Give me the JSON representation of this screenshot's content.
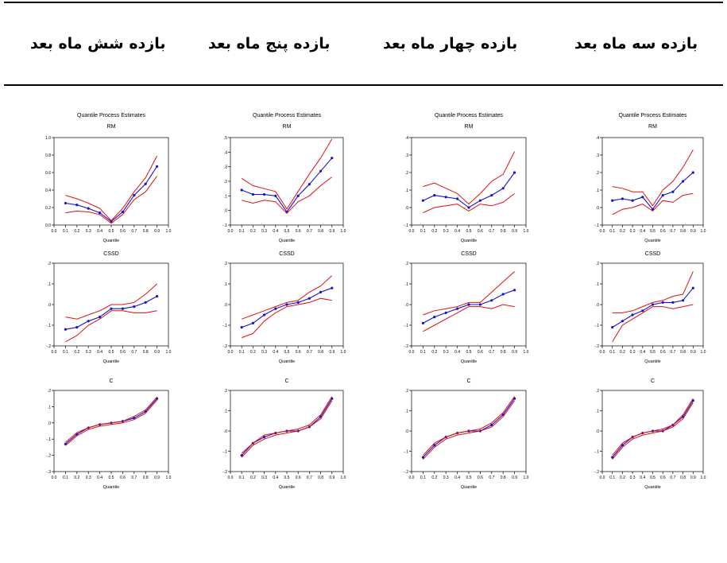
{
  "headers": [
    "بازده سه ماه بعد",
    "بازده چهار ماه بعد",
    "بازده پنج ماه بعد",
    "بازده شش ماه بعد"
  ],
  "colors": {
    "estimate": "#1515c8",
    "band": "#e01010",
    "axis": "#000000"
  },
  "chart_data": [
    {
      "type": "line",
      "title": "Quantile Process Estimates",
      "subtitle": "RM",
      "xlabel": "Quantile",
      "xticks": [
        "0.0",
        "0.1",
        "0.2",
        "0.3",
        "0.4",
        "0.5",
        "0.6",
        "0.7",
        "0.8",
        "0.9",
        "1.0"
      ],
      "yticks": [
        "-.1",
        ".0",
        ".1",
        ".2",
        ".3",
        ".4"
      ],
      "ylim": [
        -0.1,
        0.4
      ],
      "x": [
        0.1,
        0.2,
        0.3,
        0.4,
        0.5,
        0.6,
        0.7,
        0.8,
        0.9
      ],
      "series": [
        {
          "values": [
            0.04,
            0.05,
            0.04,
            0.06,
            -0.01,
            0.07,
            0.09,
            0.15,
            0.2
          ],
          "role": "estimate"
        },
        {
          "values": [
            0.12,
            0.11,
            0.09,
            0.09,
            0.01,
            0.1,
            0.15,
            0.23,
            0.33
          ],
          "role": "upper"
        },
        {
          "values": [
            -0.04,
            -0.01,
            0.0,
            0.02,
            -0.02,
            0.04,
            0.03,
            0.07,
            0.08
          ],
          "role": "lower"
        }
      ]
    },
    {
      "type": "line",
      "title": "Quantile Process Estimates",
      "subtitle": "RM",
      "xlabel": "Quantile",
      "xticks": [
        "0.0",
        "0.1",
        "0.2",
        "0.3",
        "0.4",
        "0.5",
        "0.6",
        "0.7",
        "0.8",
        "0.9",
        "1.0"
      ],
      "yticks": [
        "-.1",
        ".0",
        ".1",
        ".2",
        ".3",
        ".4"
      ],
      "ylim": [
        -0.1,
        0.4
      ],
      "x": [
        0.1,
        0.2,
        0.3,
        0.4,
        0.5,
        0.6,
        0.7,
        0.8,
        0.9
      ],
      "series": [
        {
          "values": [
            0.04,
            0.07,
            0.06,
            0.05,
            0.0,
            0.04,
            0.07,
            0.11,
            0.2
          ],
          "role": "estimate"
        },
        {
          "values": [
            0.12,
            0.14,
            0.11,
            0.08,
            0.02,
            0.08,
            0.15,
            0.19,
            0.32
          ],
          "role": "upper"
        },
        {
          "values": [
            -0.03,
            0.0,
            0.01,
            0.02,
            -0.02,
            0.02,
            0.01,
            0.03,
            0.08
          ],
          "role": "lower"
        }
      ]
    },
    {
      "type": "line",
      "title": "Quantile Process Estimates",
      "subtitle": "RM",
      "xlabel": "Quantile",
      "xticks": [
        "0.0",
        "0.1",
        "0.2",
        "0.3",
        "0.4",
        "0.5",
        "0.6",
        "0.7",
        "0.8",
        "0.9",
        "1.0"
      ],
      "yticks": [
        "-.1",
        ".0",
        ".1",
        ".2",
        ".3",
        ".4",
        ".5"
      ],
      "ylim": [
        -0.1,
        0.5
      ],
      "x": [
        0.1,
        0.2,
        0.3,
        0.4,
        0.5,
        0.6,
        0.7,
        0.8,
        0.9
      ],
      "series": [
        {
          "values": [
            0.14,
            0.11,
            0.11,
            0.1,
            -0.01,
            0.1,
            0.18,
            0.27,
            0.36
          ],
          "role": "estimate"
        },
        {
          "values": [
            0.22,
            0.17,
            0.15,
            0.13,
            0.01,
            0.13,
            0.25,
            0.36,
            0.49
          ],
          "role": "upper"
        },
        {
          "values": [
            0.07,
            0.05,
            0.07,
            0.06,
            -0.02,
            0.06,
            0.1,
            0.17,
            0.23
          ],
          "role": "lower"
        }
      ]
    },
    {
      "type": "line",
      "title": "Quantile Process Estimates",
      "subtitle": "RM",
      "xlabel": "Quantile",
      "xticks": [
        "0.0",
        "0.1",
        "0.2",
        "0.3",
        "0.4",
        "0.5",
        "0.6",
        "0.7",
        "0.8",
        "0.9",
        "1.0"
      ],
      "yticks": [
        "0.0",
        "0.2",
        "0.4",
        "0.6",
        "0.8",
        "1.0"
      ],
      "ylim": [
        0.0,
        1.0
      ],
      "x": [
        0.1,
        0.2,
        0.3,
        0.4,
        0.5,
        0.6,
        0.7,
        0.8,
        0.9
      ],
      "series": [
        {
          "values": [
            0.25,
            0.23,
            0.19,
            0.14,
            0.04,
            0.15,
            0.34,
            0.47,
            0.67
          ],
          "role": "estimate"
        },
        {
          "values": [
            0.34,
            0.3,
            0.25,
            0.19,
            0.05,
            0.19,
            0.38,
            0.54,
            0.79
          ],
          "role": "upper"
        },
        {
          "values": [
            0.14,
            0.16,
            0.15,
            0.12,
            0.02,
            0.12,
            0.29,
            0.38,
            0.56
          ],
          "role": "lower"
        }
      ]
    },
    {
      "type": "line",
      "title": "CSSD",
      "xlabel": "Quantile",
      "xticks": [
        "0.0",
        "0.1",
        "0.2",
        "0.3",
        "0.4",
        "0.5",
        "0.6",
        "0.7",
        "0.8",
        "0.9",
        "1.0"
      ],
      "yticks": [
        "-.2",
        "-.1",
        ".0",
        ".1",
        ".2"
      ],
      "ylim": [
        -0.2,
        0.2
      ],
      "x": [
        0.1,
        0.2,
        0.3,
        0.4,
        0.5,
        0.6,
        0.7,
        0.8,
        0.9
      ],
      "series": [
        {
          "values": [
            -0.11,
            -0.08,
            -0.05,
            -0.03,
            0.0,
            0.01,
            0.01,
            0.02,
            0.08
          ],
          "role": "estimate"
        },
        {
          "values": [
            -0.04,
            -0.04,
            -0.03,
            -0.01,
            0.01,
            0.02,
            0.04,
            0.05,
            0.16
          ],
          "role": "upper"
        },
        {
          "values": [
            -0.18,
            -0.1,
            -0.07,
            -0.04,
            -0.01,
            -0.01,
            -0.02,
            -0.01,
            0.0
          ],
          "role": "lower"
        }
      ]
    },
    {
      "type": "line",
      "title": "CSSD",
      "xlabel": "Quantile",
      "xticks": [
        "0.0",
        "0.1",
        "0.2",
        "0.3",
        "0.4",
        "0.5",
        "0.6",
        "0.7",
        "0.8",
        "0.9",
        "1.0"
      ],
      "yticks": [
        "-.2",
        "-.1",
        ".0",
        ".1",
        ".2"
      ],
      "ylim": [
        -0.2,
        0.2
      ],
      "x": [
        0.1,
        0.2,
        0.3,
        0.4,
        0.5,
        0.6,
        0.7,
        0.8,
        0.9
      ],
      "series": [
        {
          "values": [
            -0.09,
            -0.06,
            -0.04,
            -0.02,
            0.0,
            0.0,
            0.02,
            0.05,
            0.07
          ],
          "role": "estimate"
        },
        {
          "values": [
            -0.05,
            -0.03,
            -0.02,
            -0.01,
            0.01,
            0.01,
            0.06,
            0.11,
            0.16
          ],
          "role": "upper"
        },
        {
          "values": [
            -0.13,
            -0.1,
            -0.07,
            -0.04,
            -0.01,
            -0.01,
            -0.02,
            0.0,
            -0.01
          ],
          "role": "lower"
        }
      ]
    },
    {
      "type": "line",
      "title": "CSSD",
      "xlabel": "Quantile",
      "xticks": [
        "0.0",
        "0.1",
        "0.2",
        "0.3",
        "0.4",
        "0.5",
        "0.6",
        "0.7",
        "0.8",
        "0.9",
        "1.0"
      ],
      "yticks": [
        "-.2",
        "-.1",
        ".0",
        ".1",
        ".2"
      ],
      "ylim": [
        -0.2,
        0.2
      ],
      "x": [
        0.1,
        0.2,
        0.3,
        0.4,
        0.5,
        0.6,
        0.7,
        0.8,
        0.9
      ],
      "series": [
        {
          "values": [
            -0.11,
            -0.09,
            -0.05,
            -0.02,
            0.0,
            0.01,
            0.03,
            0.06,
            0.08
          ],
          "role": "estimate"
        },
        {
          "values": [
            -0.07,
            -0.05,
            -0.03,
            -0.01,
            0.01,
            0.02,
            0.06,
            0.09,
            0.14
          ],
          "role": "upper"
        },
        {
          "values": [
            -0.16,
            -0.14,
            -0.08,
            -0.04,
            -0.01,
            0.0,
            0.01,
            0.03,
            0.02
          ],
          "role": "lower"
        }
      ]
    },
    {
      "type": "line",
      "title": "CSSD",
      "xlabel": "Quantile",
      "xticks": [
        "0.0",
        "0.1",
        "0.2",
        "0.3",
        "0.4",
        "0.5",
        "0.6",
        "0.7",
        "0.8",
        "0.9",
        "1.0"
      ],
      "yticks": [
        "-.2",
        "-.1",
        ".0",
        ".1",
        ".2"
      ],
      "ylim": [
        -0.2,
        0.2
      ],
      "x": [
        0.1,
        0.2,
        0.3,
        0.4,
        0.5,
        0.6,
        0.7,
        0.8,
        0.9
      ],
      "series": [
        {
          "values": [
            -0.12,
            -0.11,
            -0.08,
            -0.06,
            -0.02,
            -0.02,
            -0.01,
            0.01,
            0.04
          ],
          "role": "estimate"
        },
        {
          "values": [
            -0.06,
            -0.07,
            -0.05,
            -0.03,
            0.0,
            0.0,
            0.01,
            0.05,
            0.1
          ],
          "role": "upper"
        },
        {
          "values": [
            -0.18,
            -0.15,
            -0.1,
            -0.07,
            -0.03,
            -0.03,
            -0.04,
            -0.04,
            -0.03
          ],
          "role": "lower"
        }
      ]
    },
    {
      "type": "line",
      "title": "C",
      "xlabel": "Quantile",
      "xticks": [
        "0.0",
        "0.1",
        "0.2",
        "0.3",
        "0.4",
        "0.5",
        "0.6",
        "0.7",
        "0.8",
        "0.9",
        "1.0"
      ],
      "yticks": [
        "-.2",
        "-.1",
        ".0",
        ".1",
        ".2"
      ],
      "ylim": [
        -0.2,
        0.2
      ],
      "x": [
        0.1,
        0.2,
        0.3,
        0.4,
        0.5,
        0.6,
        0.7,
        0.8,
        0.9
      ],
      "series": [
        {
          "values": [
            -0.13,
            -0.07,
            -0.03,
            -0.01,
            0.0,
            0.0,
            0.03,
            0.07,
            0.15
          ],
          "role": "estimate"
        },
        {
          "values": [
            -0.12,
            -0.06,
            -0.03,
            -0.01,
            0.0,
            0.01,
            0.03,
            0.08,
            0.16
          ],
          "role": "upper"
        },
        {
          "values": [
            -0.14,
            -0.08,
            -0.04,
            -0.02,
            -0.01,
            0.0,
            0.02,
            0.06,
            0.14
          ],
          "role": "lower"
        }
      ]
    },
    {
      "type": "line",
      "title": "C",
      "xlabel": "Quantile",
      "xticks": [
        "0.0",
        "0.1",
        "0.2",
        "0.3",
        "0.4",
        "0.5",
        "0.6",
        "0.7",
        "0.8",
        "0.9",
        "1.0"
      ],
      "yticks": [
        "-.2",
        "-.1",
        ".0",
        ".1",
        ".2"
      ],
      "ylim": [
        -0.2,
        0.2
      ],
      "x": [
        0.1,
        0.2,
        0.3,
        0.4,
        0.5,
        0.6,
        0.7,
        0.8,
        0.9
      ],
      "series": [
        {
          "values": [
            -0.13,
            -0.07,
            -0.03,
            -0.01,
            0.0,
            0.0,
            0.03,
            0.08,
            0.16
          ],
          "role": "estimate"
        },
        {
          "values": [
            -0.12,
            -0.06,
            -0.03,
            -0.01,
            0.0,
            0.01,
            0.04,
            0.09,
            0.17
          ],
          "role": "upper"
        },
        {
          "values": [
            -0.14,
            -0.08,
            -0.04,
            -0.02,
            -0.01,
            0.0,
            0.02,
            0.07,
            0.15
          ],
          "role": "lower"
        }
      ]
    },
    {
      "type": "line",
      "title": "C",
      "xlabel": "Quantile",
      "xticks": [
        "0.0",
        "0.1",
        "0.2",
        "0.3",
        "0.4",
        "0.5",
        "0.6",
        "0.7",
        "0.8",
        "0.9",
        "1.0"
      ],
      "yticks": [
        "-.2",
        "-.1",
        ".0",
        ".1",
        ".2"
      ],
      "ylim": [
        -0.2,
        0.2
      ],
      "x": [
        0.1,
        0.2,
        0.3,
        0.4,
        0.5,
        0.6,
        0.7,
        0.8,
        0.9
      ],
      "series": [
        {
          "values": [
            -0.12,
            -0.06,
            -0.03,
            -0.01,
            0.0,
            0.0,
            0.02,
            0.07,
            0.16
          ],
          "role": "estimate"
        },
        {
          "values": [
            -0.11,
            -0.06,
            -0.02,
            -0.01,
            0.0,
            0.01,
            0.03,
            0.08,
            0.17
          ],
          "role": "upper"
        },
        {
          "values": [
            -0.13,
            -0.07,
            -0.04,
            -0.02,
            -0.01,
            0.0,
            0.02,
            0.06,
            0.15
          ],
          "role": "lower"
        }
      ]
    },
    {
      "type": "line",
      "title": "C",
      "xlabel": "Quantile",
      "xticks": [
        "0.0",
        "0.1",
        "0.2",
        "0.3",
        "0.4",
        "0.5",
        "0.6",
        "0.7",
        "0.8",
        "0.9",
        "1.0"
      ],
      "yticks": [
        "-.3",
        "-.2",
        "-.1",
        ".0",
        ".1",
        ".2"
      ],
      "ylim": [
        -0.3,
        0.2
      ],
      "x": [
        0.1,
        0.2,
        0.3,
        0.4,
        0.5,
        0.6,
        0.7,
        0.8,
        0.9
      ],
      "series": [
        {
          "values": [
            -0.13,
            -0.07,
            -0.03,
            -0.01,
            0.0,
            0.01,
            0.03,
            0.07,
            0.15
          ],
          "role": "estimate"
        },
        {
          "values": [
            -0.12,
            -0.06,
            -0.03,
            -0.01,
            0.0,
            0.01,
            0.04,
            0.08,
            0.16
          ],
          "role": "upper"
        },
        {
          "values": [
            -0.14,
            -0.08,
            -0.04,
            -0.02,
            -0.01,
            0.0,
            0.02,
            0.06,
            0.14
          ],
          "role": "lower"
        }
      ]
    }
  ]
}
